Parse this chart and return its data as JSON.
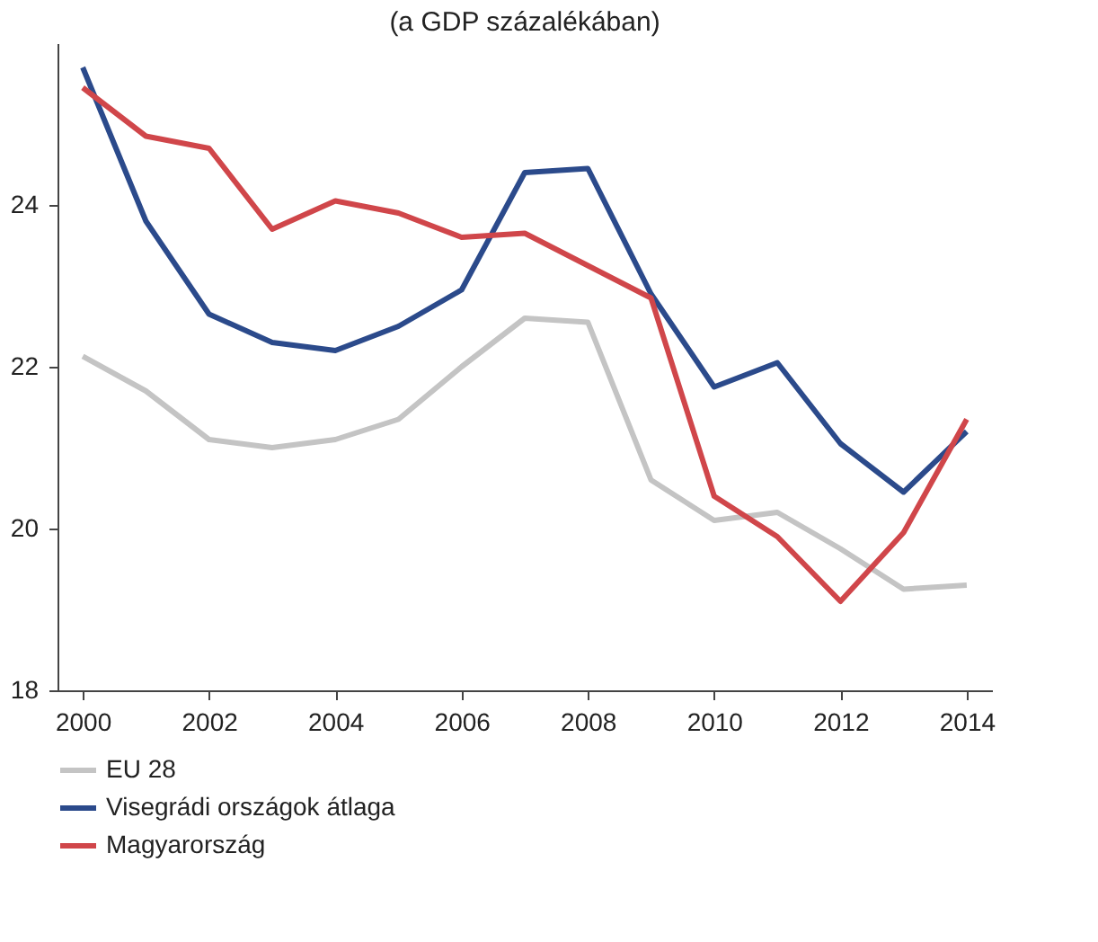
{
  "chart_data": {
    "type": "line",
    "title": "(a GDP százalékában)",
    "x": [
      2000,
      2001,
      2002,
      2003,
      2004,
      2005,
      2006,
      2007,
      2008,
      2009,
      2010,
      2011,
      2012,
      2013,
      2014
    ],
    "series": [
      {
        "name": "EU 28",
        "color": "#c4c4c4",
        "values": [
          22.13,
          21.7,
          21.1,
          21.0,
          21.1,
          21.35,
          22.0,
          22.6,
          22.55,
          20.6,
          20.1,
          20.2,
          19.75,
          19.25,
          19.3
        ]
      },
      {
        "name": "Visegrádi országok átlaga",
        "color": "#2b4a8b",
        "values": [
          25.7,
          23.8,
          22.65,
          22.3,
          22.2,
          22.5,
          22.95,
          24.4,
          24.45,
          22.9,
          21.75,
          22.05,
          21.05,
          20.45,
          21.2
        ]
      },
      {
        "name": "Magyarország",
        "color": "#d0464a",
        "values": [
          25.45,
          24.85,
          24.7,
          23.7,
          24.05,
          23.9,
          23.6,
          23.65,
          23.25,
          22.85,
          20.4,
          19.9,
          19.1,
          19.95,
          21.35
        ]
      }
    ],
    "xlim": [
      1999.6,
      2014.4
    ],
    "xticks": [
      2000,
      2002,
      2004,
      2006,
      2008,
      2010,
      2012,
      2014
    ],
    "ylim": [
      18,
      26
    ],
    "yticks": [
      18,
      20,
      22,
      24
    ],
    "grid": false,
    "legend": "bottom left",
    "marker": "none",
    "line_style": "solid"
  }
}
